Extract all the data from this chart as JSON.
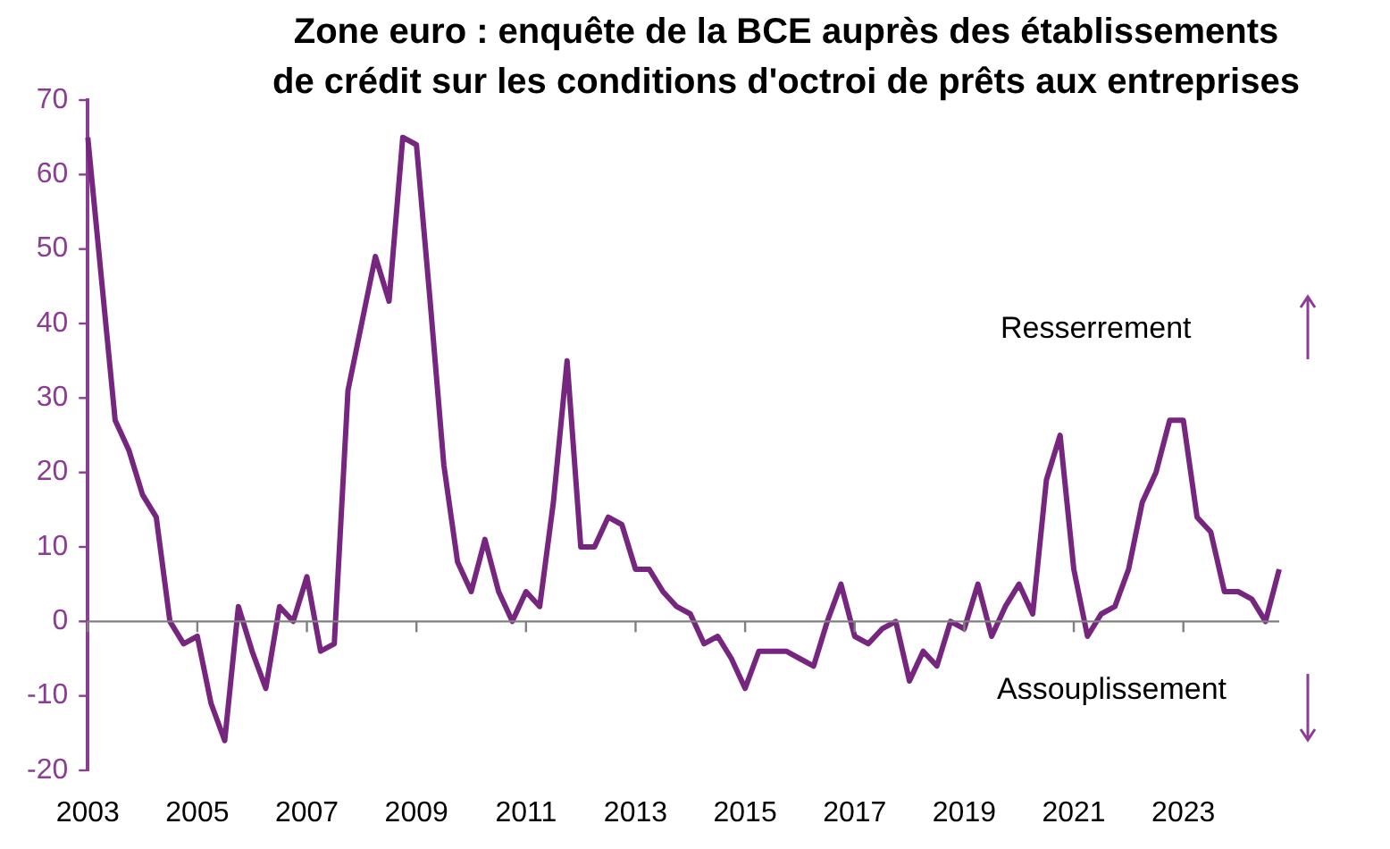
{
  "chart_data": {
    "type": "line",
    "title": "Zone euro : enquête de la BCE auprès des établissements de crédit sur les conditions d'octroi de prêts aux entreprises",
    "categories": [
      "2003",
      null,
      null,
      null,
      null,
      null,
      null,
      null,
      "2005",
      null,
      null,
      null,
      null,
      null,
      null,
      null,
      "2007",
      null,
      null,
      null,
      null,
      null,
      null,
      null,
      "2009",
      null,
      null,
      null,
      null,
      null,
      null,
      null,
      "2011",
      null,
      null,
      null,
      null,
      null,
      null,
      null,
      "2013",
      null,
      null,
      null,
      null,
      null,
      null,
      null,
      "2015",
      null,
      null,
      null,
      null,
      null,
      null,
      null,
      "2017",
      null,
      null,
      null,
      null,
      null,
      null,
      null,
      "2019",
      null,
      null,
      null,
      null,
      null,
      null,
      null,
      "2021",
      null,
      null,
      null,
      null,
      null,
      null,
      null,
      "2023",
      null,
      null,
      null,
      null,
      null,
      null,
      null
    ],
    "series": [
      {
        "color": "#76267f",
        "values": [
          65,
          46,
          27,
          23,
          17,
          14,
          0,
          -3,
          -2,
          -11,
          -16,
          2,
          -4,
          -9,
          2,
          0,
          6,
          -4,
          -3,
          31,
          40,
          49,
          43,
          65,
          64,
          43,
          21,
          8,
          4,
          11,
          4,
          0,
          4,
          2,
          16,
          35,
          10,
          10,
          14,
          13,
          7,
          7,
          4,
          2,
          1,
          -3,
          -2,
          -5,
          -9,
          -4,
          -4,
          -4,
          -5,
          -6,
          0,
          5,
          -2,
          -3,
          -1,
          0,
          -8,
          -4,
          -6,
          0,
          -1,
          5,
          -2,
          2,
          5,
          1,
          19,
          25,
          7,
          -2,
          1,
          2,
          7,
          16,
          20,
          27,
          27,
          14,
          12,
          4,
          4,
          3,
          0,
          7
        ]
      }
    ],
    "ylim": [
      -20,
      70
    ],
    "yticks": [
      -20,
      -10,
      0,
      10,
      20,
      30,
      40,
      50,
      60,
      70
    ],
    "grid": false,
    "legend": false,
    "marker": "none",
    "line_style": "solid",
    "ref_lines": [
      {
        "axis": "y",
        "value": 0,
        "color": "#808080"
      }
    ],
    "annotations": [
      "Resserrement",
      "Assouplissement"
    ]
  }
}
